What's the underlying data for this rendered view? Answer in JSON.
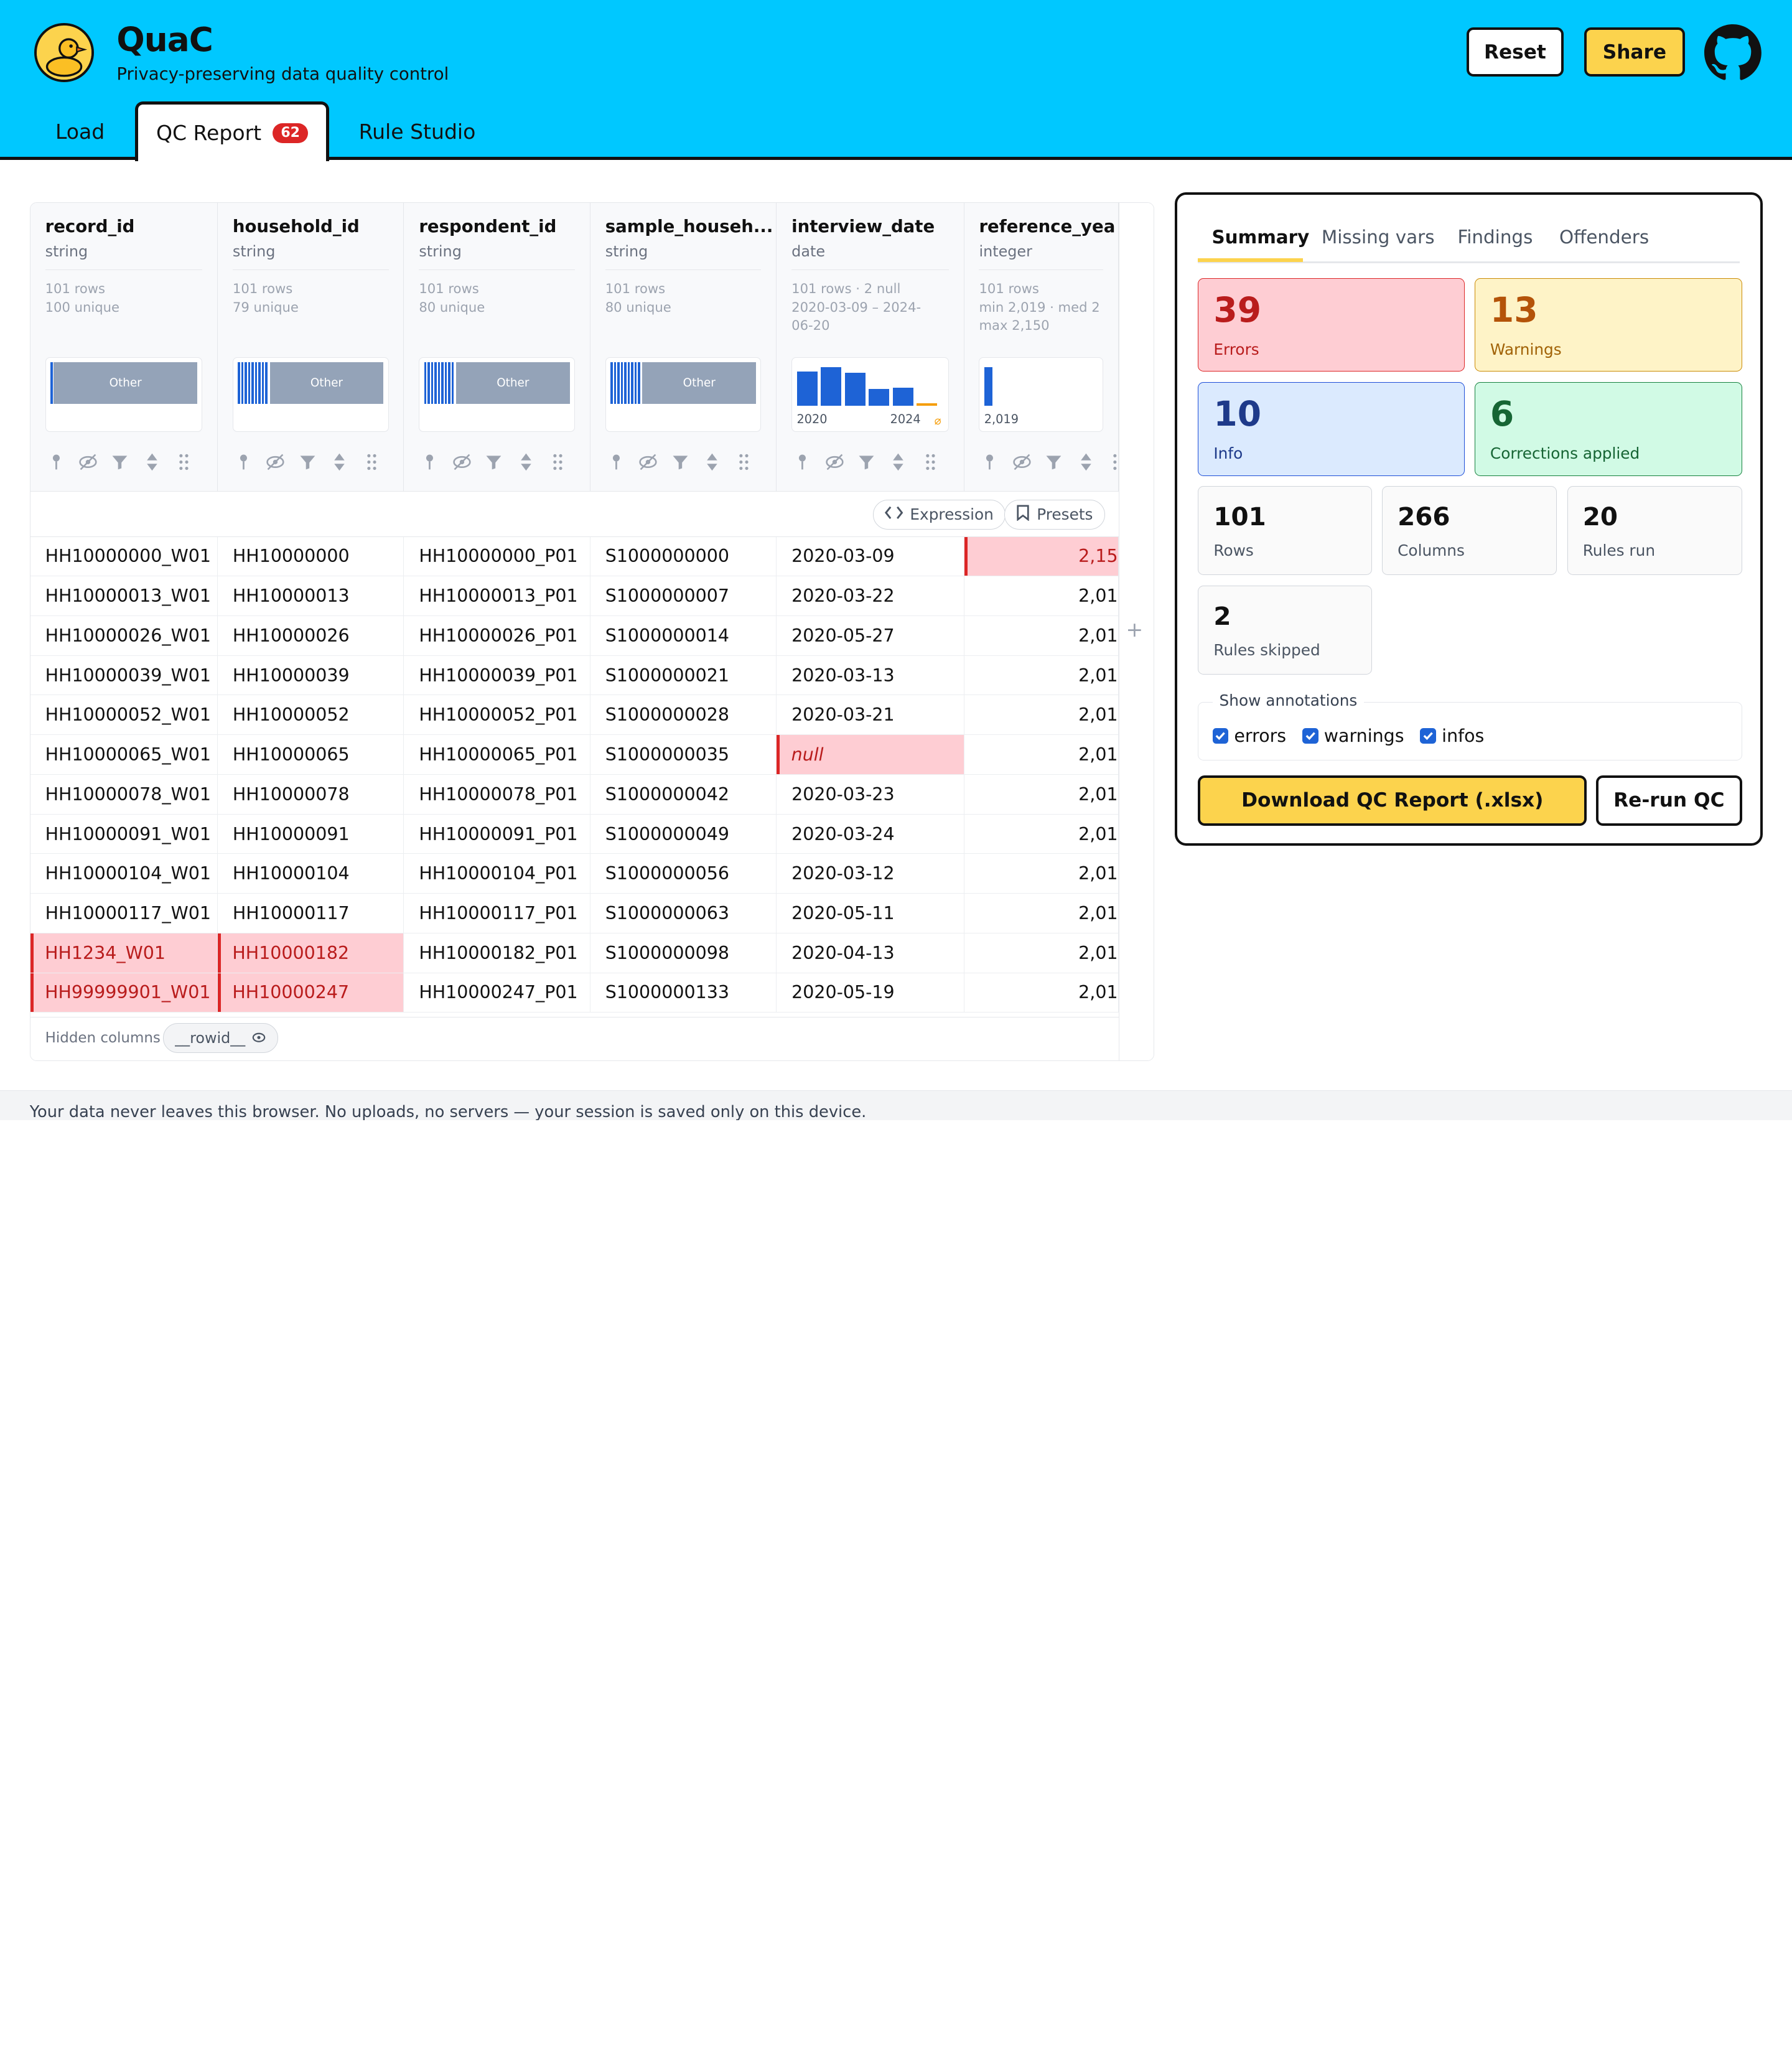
{
  "app": {
    "name": "QuaC",
    "tagline": "Privacy-preserving data quality control"
  },
  "header": {
    "reset_label": "Reset",
    "share_label": "Share"
  },
  "tabs": [
    {
      "label": "Load"
    },
    {
      "label": "QC Report",
      "badge": "62"
    },
    {
      "label": "Rule Studio"
    }
  ],
  "columns": [
    {
      "name": "record_id",
      "type": "string",
      "stats": "101 rows\n100 unique",
      "viz_label": "Other"
    },
    {
      "name": "household_id",
      "type": "string",
      "stats": "101 rows\n79 unique",
      "viz_label": "Other"
    },
    {
      "name": "respondent_id",
      "type": "string",
      "stats": "101 rows\n80 unique",
      "viz_label": "Other"
    },
    {
      "name": "sample_househ...",
      "type": "string",
      "stats": "101 rows\n80 unique",
      "viz_label": "Other"
    },
    {
      "name": "interview_date",
      "type": "date",
      "stats": "101 rows · 2 null\n2020-03-09 – 2024-\n06-20",
      "hist_start": "2020",
      "hist_end": "2024",
      "hist_values": [
        0.75,
        0.85,
        0.72,
        0.38,
        0.4,
        0.05
      ]
    },
    {
      "name": "reference_yea",
      "type": "integer",
      "stats": "101 rows\nmin 2,019 · med 2\nmax 2,150",
      "hist_start": "2,019",
      "hist_values": [
        0.85
      ]
    }
  ],
  "toolbar": {
    "expression_label": "Expression",
    "presets_label": "Presets"
  },
  "rows": [
    [
      "HH10000000_W01",
      "HH10000000",
      "HH10000000_P01",
      "S1000000000",
      "2020-03-09",
      "2,15"
    ],
    [
      "HH10000013_W01",
      "HH10000013",
      "HH10000013_P01",
      "S1000000007",
      "2020-03-22",
      "2,01"
    ],
    [
      "HH10000026_W01",
      "HH10000026",
      "HH10000026_P01",
      "S1000000014",
      "2020-05-27",
      "2,01"
    ],
    [
      "HH10000039_W01",
      "HH10000039",
      "HH10000039_P01",
      "S1000000021",
      "2020-03-13",
      "2,01"
    ],
    [
      "HH10000052_W01",
      "HH10000052",
      "HH10000052_P01",
      "S1000000028",
      "2020-03-21",
      "2,01"
    ],
    [
      "HH10000065_W01",
      "HH10000065",
      "HH10000065_P01",
      "S1000000035",
      "null",
      "2,01"
    ],
    [
      "HH10000078_W01",
      "HH10000078",
      "HH10000078_P01",
      "S1000000042",
      "2020-03-23",
      "2,01"
    ],
    [
      "HH10000091_W01",
      "HH10000091",
      "HH10000091_P01",
      "S1000000049",
      "2020-03-24",
      "2,01"
    ],
    [
      "HH10000104_W01",
      "HH10000104",
      "HH10000104_P01",
      "S1000000056",
      "2020-03-12",
      "2,01"
    ],
    [
      "HH10000117_W01",
      "HH10000117",
      "HH10000117_P01",
      "S1000000063",
      "2020-05-11",
      "2,01"
    ],
    [
      "HH1234_W01",
      "HH10000182",
      "HH10000182_P01",
      "S1000000098",
      "2020-04-13",
      "2,01"
    ],
    [
      "HH99999901_W01",
      "HH10000247",
      "HH10000247_P01",
      "S1000000133",
      "2020-05-19",
      "2,01"
    ]
  ],
  "error_cells": [
    [
      0,
      5
    ],
    [
      5,
      4
    ],
    [
      10,
      0
    ],
    [
      10,
      1
    ],
    [
      11,
      0
    ],
    [
      11,
      1
    ]
  ],
  "footer": {
    "hidden_label": "Hidden columns",
    "hidden_chip": "__rowid__"
  },
  "summary": {
    "tabs": [
      "Summary",
      "Missing vars",
      "Findings",
      "Offenders"
    ],
    "errors": {
      "value": "39",
      "label": "Errors"
    },
    "warnings": {
      "value": "13",
      "label": "Warnings"
    },
    "info": {
      "value": "10",
      "label": "Info"
    },
    "corrections": {
      "value": "6",
      "label": "Corrections applied"
    },
    "rows": {
      "value": "101",
      "label": "Rows"
    },
    "columns": {
      "value": "266",
      "label": "Columns"
    },
    "rules_run": {
      "value": "20",
      "label": "Rules run"
    },
    "rules_skipped": {
      "value": "2",
      "label": "Rules skipped"
    },
    "annotations_legend": "Show annotations",
    "annotations": [
      "errors",
      "warnings",
      "infos"
    ],
    "download_label": "Download QC Report (.xlsx)",
    "rerun_label": "Re-run QC"
  },
  "bottom_text": "Your data never leaves this browser. No uploads, no servers — your session is saved only on this device.",
  "colors": {
    "header_bg": "#00c8ff",
    "accent_yellow": "#fcd34d",
    "error_bg": "#fecdd3",
    "bar_blue": "#1e63d6"
  }
}
